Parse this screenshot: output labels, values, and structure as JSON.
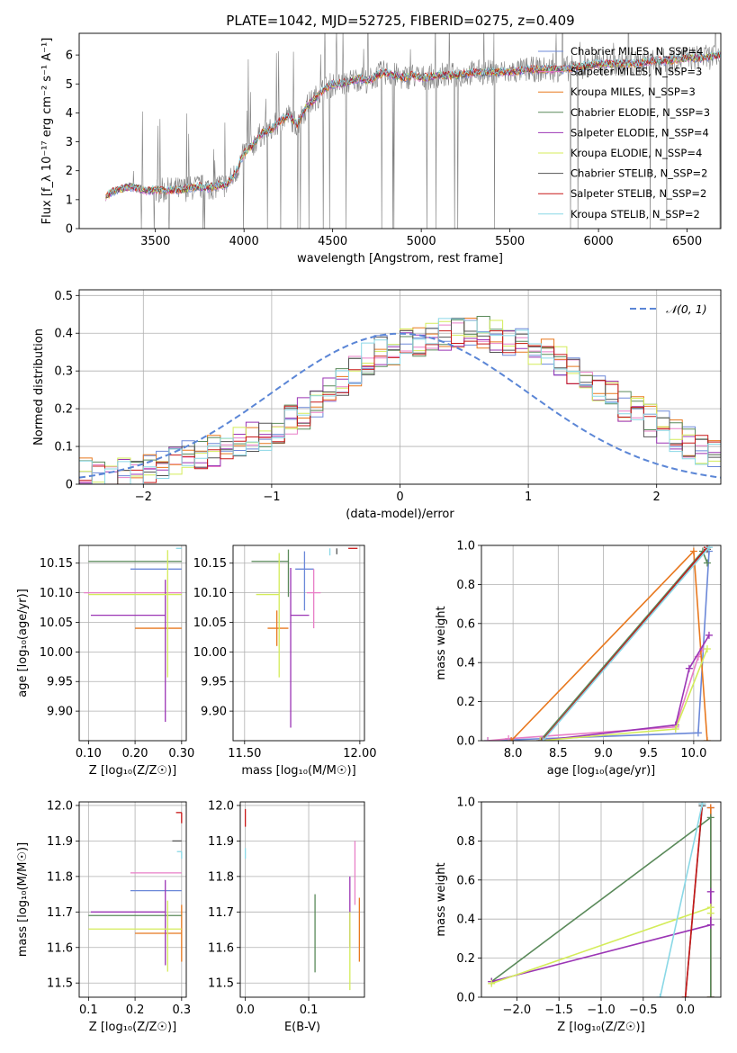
{
  "title": "PLATE=1042, MJD=52725, FIBERID=0275, z=0.409",
  "colors": {
    "Chabrier MILES": "#6b88d8",
    "Salpeter MILES": "#e87fc7",
    "Kroupa MILES": "#e8781e",
    "Chabrier ELODIE": "#5a8a5a",
    "Salpeter ELODIE": "#9b35b5",
    "Kroupa ELODIE": "#d4ec5a",
    "Chabrier STELIB": "#555555",
    "Salpeter STELIB": "#c81818",
    "Kroupa STELIB": "#8ad8e6",
    "gauss": "#5b86d6",
    "data": "#808080"
  },
  "chart_data": [
    {
      "id": "spectrum",
      "type": "line",
      "xlabel": "wavelength [Angstrom, rest frame]",
      "ylabel": "Flux [f_λ 10⁻¹⁷ erg cm⁻² s⁻¹ A⁻¹]",
      "xlim": [
        3070,
        6690
      ],
      "ylim": [
        0,
        6.75
      ],
      "xticks": [
        3500,
        4000,
        4500,
        5000,
        5500,
        6000,
        6500
      ],
      "yticks": [
        0,
        1,
        2,
        3,
        4,
        5,
        6
      ],
      "grid": false,
      "legend_position": "top-right",
      "legend": [
        {
          "name": "Chabrier MILES, N_SSP=4",
          "color_key": "Chabrier MILES"
        },
        {
          "name": "Salpeter MILES, N_SSP=3",
          "color_key": "Salpeter MILES"
        },
        {
          "name": "Kroupa MILES, N_SSP=3",
          "color_key": "Kroupa MILES"
        },
        {
          "name": "Chabrier ELODIE, N_SSP=3",
          "color_key": "Chabrier ELODIE"
        },
        {
          "name": "Salpeter ELODIE, N_SSP=4",
          "color_key": "Salpeter ELODIE"
        },
        {
          "name": "Kroupa ELODIE, N_SSP=4",
          "color_key": "Kroupa ELODIE"
        },
        {
          "name": "Chabrier STELIB, N_SSP=2",
          "color_key": "Chabrier STELIB"
        },
        {
          "name": "Salpeter STELIB, N_SSP=2",
          "color_key": "Salpeter STELIB"
        },
        {
          "name": "Kroupa STELIB, N_SSP=2",
          "color_key": "Kroupa STELIB"
        }
      ],
      "continuum": {
        "x": [
          3220,
          3260,
          3300,
          3350,
          3400,
          3450,
          3500,
          3550,
          3600,
          3650,
          3700,
          3750,
          3800,
          3850,
          3900,
          3950,
          4000,
          4050,
          4100,
          4150,
          4200,
          4250,
          4300,
          4350,
          4400,
          4450,
          4500,
          4550,
          4600,
          4650,
          4700,
          4750,
          4800,
          4850,
          4900,
          4950,
          5000,
          5100,
          5200,
          5300,
          5400,
          5500,
          5600,
          5700,
          5800,
          5900,
          6000,
          6100,
          6200,
          6300,
          6400,
          6500,
          6600,
          6690
        ],
        "y": [
          1.1,
          1.3,
          1.35,
          1.45,
          1.4,
          1.3,
          1.35,
          1.3,
          1.35,
          1.35,
          1.4,
          1.45,
          1.4,
          1.5,
          1.5,
          1.9,
          2.6,
          2.9,
          3.3,
          3.4,
          3.7,
          3.9,
          3.6,
          4.2,
          4.5,
          4.8,
          5.0,
          5.0,
          5.1,
          5.2,
          5.1,
          5.3,
          5.4,
          5.3,
          5.2,
          5.3,
          5.2,
          5.3,
          5.3,
          5.4,
          5.4,
          5.4,
          5.5,
          5.5,
          5.5,
          5.6,
          5.7,
          5.7,
          5.7,
          5.8,
          5.8,
          5.9,
          5.9,
          6.0
        ]
      }
    },
    {
      "id": "residuals",
      "type": "histogram",
      "xlabel": "(data-model)/error",
      "ylabel": "Normed distribution",
      "xlim": [
        -2.5,
        2.5
      ],
      "ylim": [
        0,
        0.515
      ],
      "xticks": [
        -2,
        -1,
        0,
        1,
        2
      ],
      "yticks": [
        0.0,
        0.1,
        0.2,
        0.3,
        0.4,
        0.5
      ],
      "grid": true,
      "legend_position": "top-right",
      "legend": [
        {
          "name": "𝒩(0, 1)",
          "color_key": "gauss"
        }
      ],
      "bin_edges_start": -2.5,
      "bin_width": 0.1,
      "base_heights": [
        0.03,
        0.02,
        0.02,
        0.03,
        0.04,
        0.04,
        0.05,
        0.06,
        0.07,
        0.08,
        0.09,
        0.1,
        0.11,
        0.12,
        0.13,
        0.15,
        0.17,
        0.19,
        0.22,
        0.25,
        0.28,
        0.3,
        0.33,
        0.35,
        0.36,
        0.37,
        0.38,
        0.39,
        0.4,
        0.4,
        0.4,
        0.4,
        0.39,
        0.38,
        0.37,
        0.36,
        0.34,
        0.32,
        0.3,
        0.28,
        0.26,
        0.24,
        0.21,
        0.19,
        0.17,
        0.15,
        0.13,
        0.11,
        0.09,
        0.08
      ]
    },
    {
      "id": "age_Z",
      "type": "errorbar",
      "xlabel": "Z [log₁₀(Z/Z☉)]",
      "ylabel": "age  [log₁₀(age/yr)]",
      "xlim": [
        0.08,
        0.31
      ],
      "ylim": [
        9.85,
        10.18
      ],
      "xticks": [
        0.1,
        0.2,
        0.3
      ],
      "yticks": [
        9.9,
        9.95,
        10.0,
        10.05,
        10.1,
        10.15
      ],
      "grid": true,
      "points": [
        {
          "c": "Chabrier MILES",
          "x": 0.3,
          "xerr": [
            0.11,
            0.0
          ],
          "y": 10.14,
          "yerr": [
            0.0,
            0.0
          ]
        },
        {
          "c": "Salpeter MILES",
          "x": 0.3,
          "xerr": [
            0.21,
            0.0
          ],
          "y": 10.1,
          "yerr": [
            0.0,
            0.0
          ]
        },
        {
          "c": "Kroupa MILES",
          "x": 0.3,
          "xerr": [
            0.1,
            0.0
          ],
          "y": 10.04,
          "yerr": [
            0.0,
            0.0
          ]
        },
        {
          "c": "Chabrier ELODIE",
          "x": 0.3,
          "xerr": [
            0.2,
            0.0
          ],
          "y": 10.153,
          "yerr": [
            0.0,
            0.0
          ]
        },
        {
          "c": "Salpeter ELODIE",
          "x": 0.265,
          "xerr": [
            0.16,
            0.0
          ],
          "y": 10.062,
          "yerr": [
            0.18,
            0.06
          ]
        },
        {
          "c": "Kroupa ELODIE",
          "x": 0.27,
          "xerr": [
            0.17,
            0.03
          ],
          "y": 10.097,
          "yerr": [
            0.14,
            0.075
          ]
        },
        {
          "c": "Chabrier STELIB",
          "x": 0.3,
          "xerr": [
            0.0,
            0.0
          ],
          "y": 10.175,
          "yerr": [
            0.0,
            0.0
          ]
        },
        {
          "c": "Salpeter STELIB",
          "x": 0.3,
          "xerr": [
            0.0,
            0.0
          ],
          "y": 10.175,
          "yerr": [
            0.0,
            0.0
          ]
        },
        {
          "c": "Kroupa STELIB",
          "x": 0.3,
          "xerr": [
            0.012,
            0.0
          ],
          "y": 10.175,
          "yerr": [
            0.0,
            0.0
          ]
        }
      ]
    },
    {
      "id": "age_mass",
      "type": "errorbar",
      "xlabel": "mass [log₁₀(M/M☉)]",
      "ylabel": "",
      "xlim": [
        11.45,
        12.02
      ],
      "ylim": [
        9.85,
        10.18
      ],
      "xticks": [
        11.5,
        12.0
      ],
      "yticks": [
        9.9,
        9.95,
        10.0,
        10.05,
        10.1,
        10.15
      ],
      "grid": true,
      "points": [
        {
          "c": "Chabrier MILES",
          "x": 11.76,
          "xerr": [
            0.04,
            0.04
          ],
          "y": 10.14,
          "yerr": [
            0.07,
            0.03
          ]
        },
        {
          "c": "Salpeter MILES",
          "x": 11.8,
          "xerr": [
            0.03,
            0.03
          ],
          "y": 10.1,
          "yerr": [
            0.06,
            0.04
          ]
        },
        {
          "c": "Kroupa MILES",
          "x": 11.64,
          "xerr": [
            0.04,
            0.05
          ],
          "y": 10.04,
          "yerr": [
            0.03,
            0.03
          ]
        },
        {
          "c": "Chabrier ELODIE",
          "x": 11.69,
          "xerr": [
            0.16,
            0.0
          ],
          "y": 10.153,
          "yerr": [
            0.06,
            0.02
          ]
        },
        {
          "c": "Salpeter ELODIE",
          "x": 11.7,
          "xerr": [
            0.0,
            0.08
          ],
          "y": 10.062,
          "yerr": [
            0.19,
            0.08
          ]
        },
        {
          "c": "Kroupa ELODIE",
          "x": 11.65,
          "xerr": [
            0.1,
            0.0
          ],
          "y": 10.097,
          "yerr": [
            0.14,
            0.07
          ]
        },
        {
          "c": "Chabrier STELIB",
          "x": 11.9,
          "xerr": [
            0.0,
            0.0
          ],
          "y": 10.175,
          "yerr": [
            0.01,
            0.0
          ]
        },
        {
          "c": "Salpeter STELIB",
          "x": 11.95,
          "xerr": [
            0.0,
            0.04
          ],
          "y": 10.175,
          "yerr": [
            0.0,
            0.0
          ]
        },
        {
          "c": "Kroupa STELIB",
          "x": 11.87,
          "xerr": [
            0.0,
            0.0
          ],
          "y": 10.175,
          "yerr": [
            0.012,
            0.0
          ]
        }
      ]
    },
    {
      "id": "weight_age",
      "type": "line",
      "xlabel": "age  [log₁₀(age/yr)]",
      "ylabel": "mass weight",
      "xlim": [
        7.65,
        10.3
      ],
      "ylim": [
        0,
        1.0
      ],
      "xticks": [
        8.0,
        8.5,
        9.0,
        9.5,
        10.0
      ],
      "yticks": [
        0.0,
        0.2,
        0.4,
        0.6,
        0.8,
        1.0
      ],
      "grid": true,
      "series": [
        {
          "c": "Chabrier MILES",
          "x": [
            7.72,
            10.05,
            10.17
          ],
          "y": [
            0.0,
            0.04,
            0.97
          ]
        },
        {
          "c": "Salpeter MILES",
          "x": [
            7.72,
            7.95,
            9.8,
            10.05,
            10.1
          ],
          "y": [
            0.0,
            0.01,
            0.07,
            0.43,
            0.47
          ]
        },
        {
          "c": "Kroupa MILES",
          "x": [
            7.98,
            10.0,
            10.15
          ],
          "y": [
            0.0,
            0.97,
            0.0
          ]
        },
        {
          "c": "Chabrier ELODIE",
          "x": [
            8.3,
            10.1,
            10.15
          ],
          "y": [
            0.0,
            0.97,
            0.91
          ]
        },
        {
          "c": "Salpeter ELODIE",
          "x": [
            8.3,
            9.8,
            9.95,
            10.17
          ],
          "y": [
            0.0,
            0.08,
            0.37,
            0.54
          ]
        },
        {
          "c": "Kroupa ELODIE",
          "x": [
            8.3,
            9.8,
            10.15
          ],
          "y": [
            0.0,
            0.06,
            0.47
          ]
        },
        {
          "c": "Chabrier STELIB",
          "x": [
            8.32,
            10.15
          ],
          "y": [
            0.0,
            0.98
          ]
        },
        {
          "c": "Salpeter STELIB",
          "x": [
            8.32,
            10.15
          ],
          "y": [
            0.0,
            0.99
          ]
        },
        {
          "c": "Kroupa STELIB",
          "x": [
            8.33,
            10.17
          ],
          "y": [
            0.0,
            0.99
          ]
        }
      ]
    },
    {
      "id": "mass_Z",
      "type": "errorbar",
      "xlabel": "Z [log₁₀(Z/Z☉)]",
      "ylabel": "mass [log₁₀(M/M☉)]",
      "xlim": [
        0.08,
        0.31
      ],
      "ylim": [
        11.46,
        12.01
      ],
      "xticks": [
        0.1,
        0.2,
        0.3
      ],
      "yticks": [
        11.5,
        11.6,
        11.7,
        11.8,
        11.9,
        12.0
      ],
      "grid": true,
      "points": [
        {
          "c": "Chabrier MILES",
          "x": 0.3,
          "xerr": [
            0.11,
            0.0
          ],
          "y": 11.76,
          "yerr": [
            0.0,
            0.0
          ]
        },
        {
          "c": "Salpeter MILES",
          "x": 0.3,
          "xerr": [
            0.11,
            0.0
          ],
          "y": 11.81,
          "yerr": [
            0.0,
            0.0
          ]
        },
        {
          "c": "Kroupa MILES",
          "x": 0.3,
          "xerr": [
            0.1,
            0.0
          ],
          "y": 11.64,
          "yerr": [
            0.08,
            0.08
          ]
        },
        {
          "c": "Chabrier ELODIE",
          "x": 0.3,
          "xerr": [
            0.2,
            0.0
          ],
          "y": 11.69,
          "yerr": [
            0.0,
            0.0
          ]
        },
        {
          "c": "Salpeter ELODIE",
          "x": 0.265,
          "xerr": [
            0.16,
            0.0
          ],
          "y": 11.7,
          "yerr": [
            0.15,
            0.09
          ]
        },
        {
          "c": "Kroupa ELODIE",
          "x": 0.27,
          "xerr": [
            0.17,
            0.03
          ],
          "y": 11.652,
          "yerr": [
            0.12,
            0.08
          ]
        },
        {
          "c": "Chabrier STELIB",
          "x": 0.3,
          "xerr": [
            0.02,
            0.0
          ],
          "y": 11.9,
          "yerr": [
            0.0,
            0.0
          ]
        },
        {
          "c": "Salpeter STELIB",
          "x": 0.3,
          "xerr": [
            0.012,
            0.0
          ],
          "y": 11.98,
          "yerr": [
            0.03,
            0.0
          ]
        },
        {
          "c": "Kroupa STELIB",
          "x": 0.3,
          "xerr": [
            0.01,
            0.0
          ],
          "y": 11.87,
          "yerr": [
            0.02,
            0.0
          ]
        }
      ]
    },
    {
      "id": "mass_ebv",
      "type": "errorbar",
      "xlabel": "E(B-V)",
      "ylabel": "",
      "xlim": [
        -0.008,
        0.188
      ],
      "ylim": [
        11.46,
        12.01
      ],
      "xticks": [
        0.0,
        0.1
      ],
      "yticks": [
        11.5,
        11.6,
        11.7,
        11.8,
        11.9,
        12.0
      ],
      "grid": true,
      "points": [
        {
          "c": "Chabrier ELODIE",
          "x": 0.11,
          "xerr": [
            0.0,
            0.0
          ],
          "y": 11.64,
          "yerr": [
            0.11,
            0.11
          ]
        },
        {
          "c": "Salpeter ELODIE",
          "x": 0.165,
          "xerr": [
            0.0,
            0.0
          ],
          "y": 11.7,
          "yerr": [
            0.1,
            0.1
          ]
        },
        {
          "c": "Kroupa ELODIE",
          "x": 0.165,
          "xerr": [
            0.0,
            0.0
          ],
          "y": 11.57,
          "yerr": [
            0.09,
            0.13
          ]
        },
        {
          "c": "Salpeter MILES",
          "x": 0.173,
          "xerr": [
            0.0,
            0.0
          ],
          "y": 11.81,
          "yerr": [
            0.09,
            0.09
          ]
        },
        {
          "c": "Kroupa MILES",
          "x": 0.18,
          "xerr": [
            0.0,
            0.0
          ],
          "y": 11.64,
          "yerr": [
            0.08,
            0.1
          ]
        },
        {
          "c": "Salpeter STELIB",
          "x": 0.0,
          "xerr": [
            0.0,
            0.0
          ],
          "y": 11.97,
          "yerr": [
            0.03,
            0.02
          ]
        },
        {
          "c": "Kroupa STELIB",
          "x": 0.0,
          "xerr": [
            0.0,
            0.0
          ],
          "y": 11.87,
          "yerr": [
            0.02,
            0.01
          ]
        }
      ]
    },
    {
      "id": "weight_Z",
      "type": "line",
      "xlabel": "Z [log₁₀(Z/Z☉)]",
      "ylabel": "mass weight",
      "xlim": [
        -2.42,
        0.42
      ],
      "ylim": [
        0,
        1.0
      ],
      "xticks": [
        -2.0,
        -1.5,
        -1.0,
        -0.5,
        0.0
      ],
      "yticks": [
        0.0,
        0.2,
        0.4,
        0.6,
        0.8,
        1.0
      ],
      "grid": true,
      "series": [
        {
          "c": "Chabrier MILES",
          "x": [
            0.3,
            0.3
          ],
          "y": [
            0.0,
            0.97
          ]
        },
        {
          "c": "Salpeter MILES",
          "x": [
            0.3,
            0.3
          ],
          "y": [
            0.0,
            0.97
          ]
        },
        {
          "c": "Kroupa MILES",
          "x": [
            0.3,
            0.3
          ],
          "y": [
            0.0,
            0.97
          ]
        },
        {
          "c": "Chabrier ELODIE",
          "x": [
            -2.3,
            0.3,
            0.3
          ],
          "y": [
            0.08,
            0.92,
            0.0
          ]
        },
        {
          "c": "Salpeter ELODIE",
          "x": [
            -2.3,
            0.3,
            0.3
          ],
          "y": [
            0.08,
            0.37,
            0.54
          ]
        },
        {
          "c": "Kroupa ELODIE",
          "x": [
            -2.3,
            0.3,
            0.3
          ],
          "y": [
            0.07,
            0.46,
            0.43
          ]
        },
        {
          "c": "Chabrier STELIB",
          "x": [
            0.0,
            0.2
          ],
          "y": [
            0.0,
            0.98
          ]
        },
        {
          "c": "Salpeter STELIB",
          "x": [
            0.0,
            0.2
          ],
          "y": [
            0.0,
            0.99
          ]
        },
        {
          "c": "Kroupa STELIB",
          "x": [
            -0.3,
            0.2
          ],
          "y": [
            0.0,
            0.99
          ]
        }
      ]
    }
  ]
}
